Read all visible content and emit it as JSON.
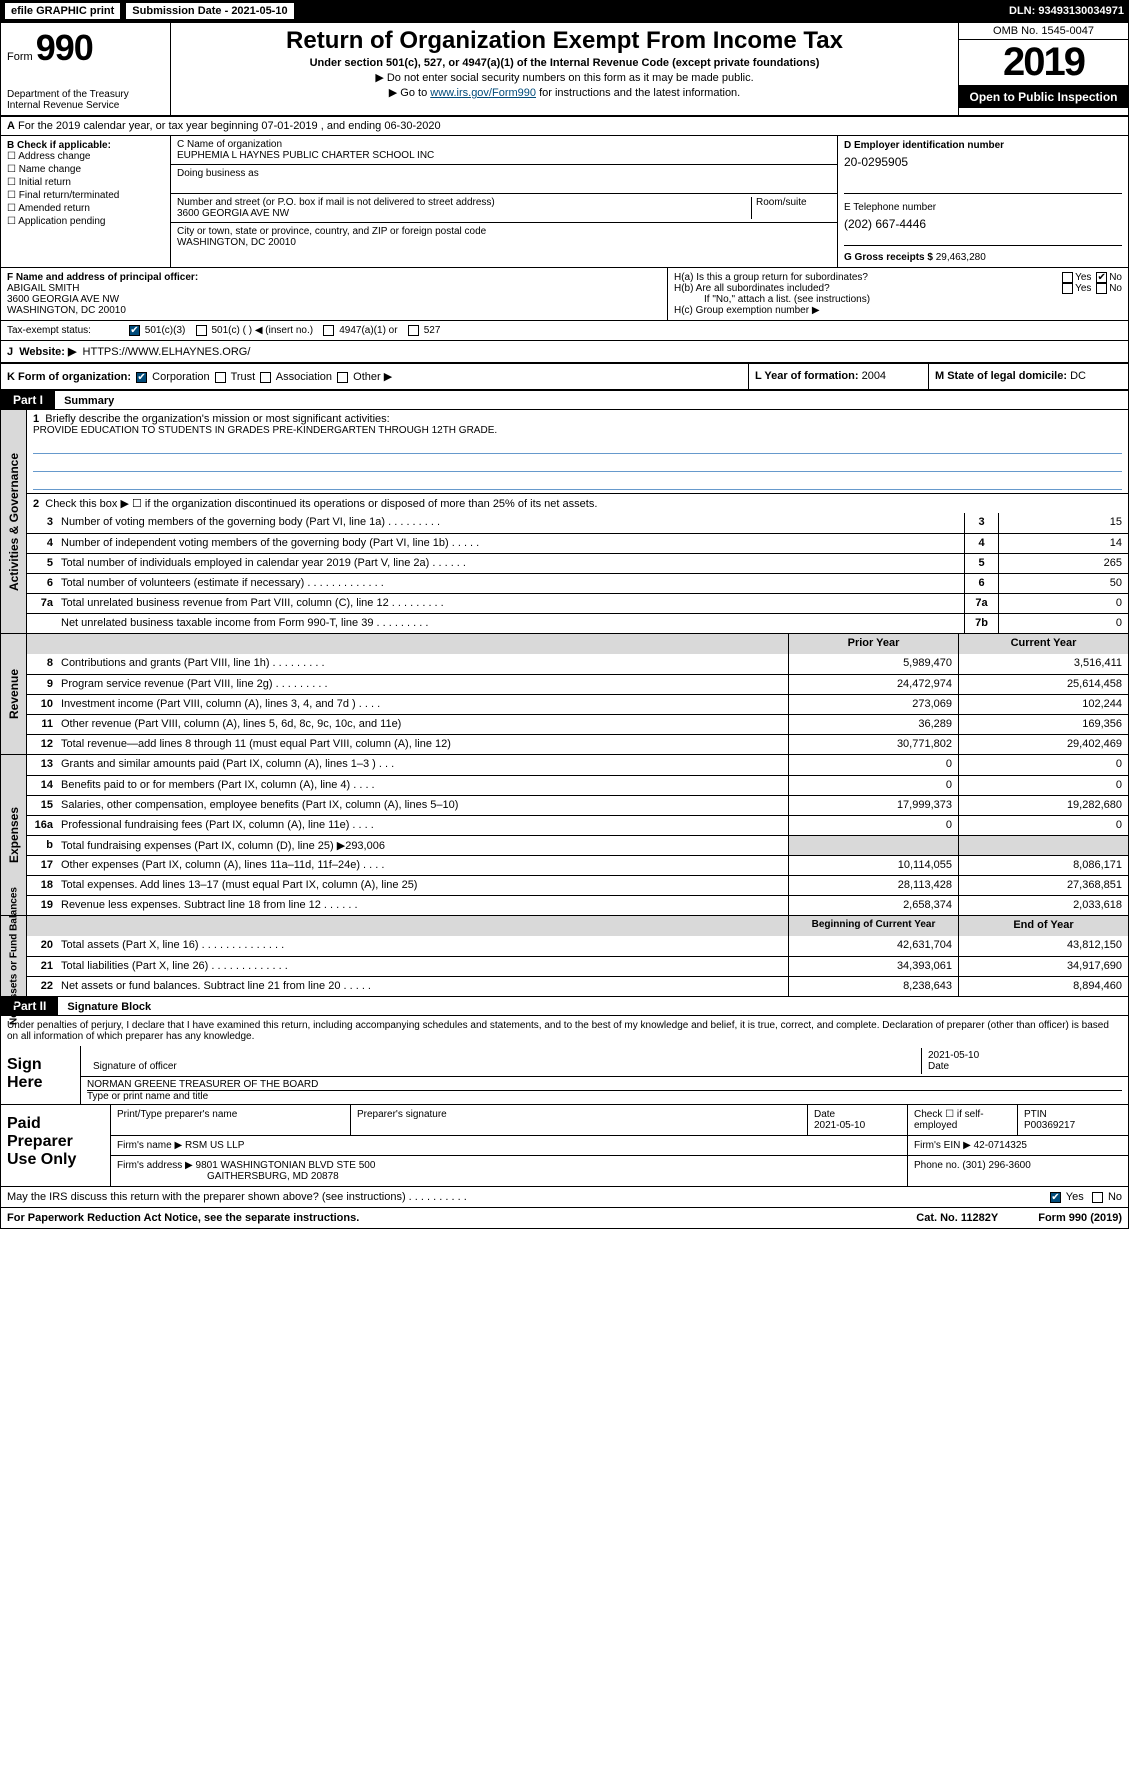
{
  "topbar": {
    "efile": "efile GRAPHIC print",
    "submission": "Submission Date - 2021-05-10",
    "dln": "DLN: 93493130034971"
  },
  "header": {
    "form_label": "Form",
    "form_number": "990",
    "title": "Return of Organization Exempt From Income Tax",
    "subtitle": "Under section 501(c), 527, or 4947(a)(1) of the Internal Revenue Code (except private foundations)",
    "note1": "▶ Do not enter social security numbers on this form as it may be made public.",
    "note2_pre": "▶ Go to ",
    "note2_link": "www.irs.gov/Form990",
    "note2_post": " for instructions and the latest information.",
    "omb": "OMB No. 1545-0047",
    "year": "2019",
    "open_pub": "Open to Public Inspection",
    "dept": "Department of the Treasury Internal Revenue Service"
  },
  "periodA": "For the 2019 calendar year, or tax year beginning 07-01-2019    , and ending 06-30-2020",
  "boxB": {
    "label": "B Check if applicable:",
    "opts": [
      "Address change",
      "Name change",
      "Initial return",
      "Final return/terminated",
      "Amended return",
      "Application pending"
    ]
  },
  "boxC": {
    "name_label": "C Name of organization",
    "name": "EUPHEMIA L HAYNES PUBLIC CHARTER SCHOOL INC",
    "dba_label": "Doing business as",
    "addr_label": "Number and street (or P.O. box if mail is not delivered to street address)",
    "room_label": "Room/suite",
    "addr": "3600 GEORGIA AVE NW",
    "city_label": "City or town, state or province, country, and ZIP or foreign postal code",
    "city": "WASHINGTON, DC  20010"
  },
  "boxD": {
    "label": "D Employer identification number",
    "val": "20-0295905"
  },
  "boxE": {
    "label": "E Telephone number",
    "val": "(202) 667-4446"
  },
  "boxG": {
    "label": "G Gross receipts $",
    "val": "29,463,280"
  },
  "boxF": {
    "label": "F Name and address of principal officer:",
    "name": "ABIGAIL SMITH",
    "addr1": "3600 GEORGIA AVE NW",
    "addr2": "WASHINGTON, DC  20010"
  },
  "boxH": {
    "ha": "H(a)  Is this a group return for subordinates?",
    "hb": "H(b)  Are all subordinates included?",
    "hnote": "If \"No,\" attach a list. (see instructions)",
    "hc": "H(c)  Group exemption number ▶",
    "yes": "Yes",
    "no": "No"
  },
  "taxexempt": {
    "label": "Tax-exempt status:",
    "o1": "501(c)(3)",
    "o2": "501(c) (   ) ◀ (insert no.)",
    "o3": "4947(a)(1) or",
    "o4": "527"
  },
  "boxJ": {
    "label": "J",
    "text": "Website: ▶",
    "val": "HTTPS://WWW.ELHAYNES.ORG/"
  },
  "boxK": {
    "label": "K Form of organization:",
    "o1": "Corporation",
    "o2": "Trust",
    "o3": "Association",
    "o4": "Other ▶"
  },
  "boxL": {
    "label": "L Year of formation:",
    "val": "2004"
  },
  "boxM": {
    "label": "M State of legal domicile:",
    "val": "DC"
  },
  "part1": {
    "hdr": "Part I",
    "title": "Summary"
  },
  "governance": {
    "label": "Activities & Governance",
    "l1": "Briefly describe the organization's mission or most significant activities:",
    "mission": "PROVIDE EDUCATION TO STUDENTS IN GRADES PRE-KINDERGARTEN THROUGH 12TH GRADE.",
    "l2": "Check this box ▶ ☐  if the organization discontinued its operations or disposed of more than 25% of its net assets.",
    "rows": [
      {
        "n": "3",
        "d": "Number of voting members of the governing body (Part VI, line 1a)   .    .    .    .    .    .    .    .    .",
        "b": "3",
        "v": "15"
      },
      {
        "n": "4",
        "d": "Number of independent voting members of the governing body (Part VI, line 1b)   .    .    .    .    .",
        "b": "4",
        "v": "14"
      },
      {
        "n": "5",
        "d": "Total number of individuals employed in calendar year 2019 (Part V, line 2a)   .    .    .    .    .    .",
        "b": "5",
        "v": "265"
      },
      {
        "n": "6",
        "d": "Total number of volunteers (estimate if necessary)   .    .    .    .    .    .    .    .    .    .    .    .    .",
        "b": "6",
        "v": "50"
      },
      {
        "n": "7a",
        "d": "Total unrelated business revenue from Part VIII, column (C), line 12   .    .    .    .    .    .    .    .    .",
        "b": "7a",
        "v": "0"
      },
      {
        "n": "",
        "d": "Net unrelated business taxable income from Form 990-T, line 39   .    .    .    .    .    .    .    .    .",
        "b": "7b",
        "v": "0"
      }
    ]
  },
  "revenue": {
    "label": "Revenue",
    "head_prior": "Prior Year",
    "head_curr": "Current Year",
    "rows": [
      {
        "n": "8",
        "d": "Contributions and grants (Part VIII, line 1h)   .    .    .    .    .    .    .    .    .",
        "p": "5,989,470",
        "c": "3,516,411"
      },
      {
        "n": "9",
        "d": "Program service revenue (Part VIII, line 2g)    .    .    .    .    .    .    .    .    .",
        "p": "24,472,974",
        "c": "25,614,458"
      },
      {
        "n": "10",
        "d": "Investment income (Part VIII, column (A), lines 3, 4, and 7d )   .    .    .    .",
        "p": "273,069",
        "c": "102,244"
      },
      {
        "n": "11",
        "d": "Other revenue (Part VIII, column (A), lines 5, 6d, 8c, 9c, 10c, and 11e)",
        "p": "36,289",
        "c": "169,356"
      },
      {
        "n": "12",
        "d": "Total revenue—add lines 8 through 11 (must equal Part VIII, column (A), line 12)",
        "p": "30,771,802",
        "c": "29,402,469"
      }
    ]
  },
  "expenses": {
    "label": "Expenses",
    "rows": [
      {
        "n": "13",
        "d": "Grants and similar amounts paid (Part IX, column (A), lines 1–3 )   .    .    .",
        "p": "0",
        "c": "0"
      },
      {
        "n": "14",
        "d": "Benefits paid to or for members (Part IX, column (A), line 4)   .    .    .    .",
        "p": "0",
        "c": "0"
      },
      {
        "n": "15",
        "d": "Salaries, other compensation, employee benefits (Part IX, column (A), lines 5–10)",
        "p": "17,999,373",
        "c": "19,282,680"
      },
      {
        "n": "16a",
        "d": "Professional fundraising fees (Part IX, column (A), line 11e)   .    .    .    .",
        "p": "0",
        "c": "0"
      },
      {
        "n": "b",
        "d": "Total fundraising expenses (Part IX, column (D), line 25) ▶293,006",
        "p": "",
        "c": "",
        "grey": true
      },
      {
        "n": "17",
        "d": "Other expenses (Part IX, column (A), lines 11a–11d, 11f–24e)   .    .    .    .",
        "p": "10,114,055",
        "c": "8,086,171"
      },
      {
        "n": "18",
        "d": "Total expenses. Add lines 13–17 (must equal Part IX, column (A), line 25)",
        "p": "28,113,428",
        "c": "27,368,851"
      },
      {
        "n": "19",
        "d": "Revenue less expenses. Subtract line 18 from line 12   .    .    .    .    .    .",
        "p": "2,658,374",
        "c": "2,033,618"
      }
    ]
  },
  "netassets": {
    "label": "Net Assets or Fund Balances",
    "head_beg": "Beginning of Current Year",
    "head_end": "End of Year",
    "rows": [
      {
        "n": "20",
        "d": "Total assets (Part X, line 16)   .    .    .    .    .    .    .    .    .    .    .    .    .    .",
        "p": "42,631,704",
        "c": "43,812,150"
      },
      {
        "n": "21",
        "d": "Total liabilities (Part X, line 26)   .    .    .    .    .    .    .    .    .    .    .    .    .",
        "p": "34,393,061",
        "c": "34,917,690"
      },
      {
        "n": "22",
        "d": "Net assets or fund balances. Subtract line 21 from line 20   .    .    .    .    .",
        "p": "8,238,643",
        "c": "8,894,460"
      }
    ]
  },
  "part2": {
    "hdr": "Part II",
    "title": "Signature Block"
  },
  "sig": {
    "intro": "Under penalties of perjury, I declare that I have examined this return, including accompanying schedules and statements, and to the best of my knowledge and belief, it is true, correct, and complete. Declaration of preparer (other than officer) is based on all information of which preparer has any knowledge.",
    "sign_here": "Sign Here",
    "sig_officer": "Signature of officer",
    "date": "2021-05-10",
    "date_label": "Date",
    "officer_name": "NORMAN GREENE  TREASURER OF THE BOARD",
    "type_label": "Type or print name and title"
  },
  "prep": {
    "label": "Paid Preparer Use Only",
    "h_name": "Print/Type preparer's name",
    "h_sig": "Preparer's signature",
    "h_date": "Date",
    "date": "2021-05-10",
    "h_check": "Check ☐ if self-employed",
    "h_ptin": "PTIN",
    "ptin": "P00369217",
    "firm_name_label": "Firm's name    ▶",
    "firm_name": "RSM US LLP",
    "firm_ein_label": "Firm's EIN ▶",
    "firm_ein": "42-0714325",
    "firm_addr_label": "Firm's address ▶",
    "firm_addr1": "9801 WASHINGTONIAN BLVD STE 500",
    "firm_addr2": "GAITHERSBURG, MD  20878",
    "phone_label": "Phone no.",
    "phone": "(301) 296-3600"
  },
  "discuss": {
    "text": "May the IRS discuss this return with the preparer shown above? (see instructions)    .    .    .    .    .    .    .    .    .    .",
    "yes": "Yes",
    "no": "No"
  },
  "footer": {
    "pra": "For Paperwork Reduction Act Notice, see the separate instructions.",
    "cat": "Cat. No. 11282Y",
    "form": "Form 990 (2019)"
  }
}
